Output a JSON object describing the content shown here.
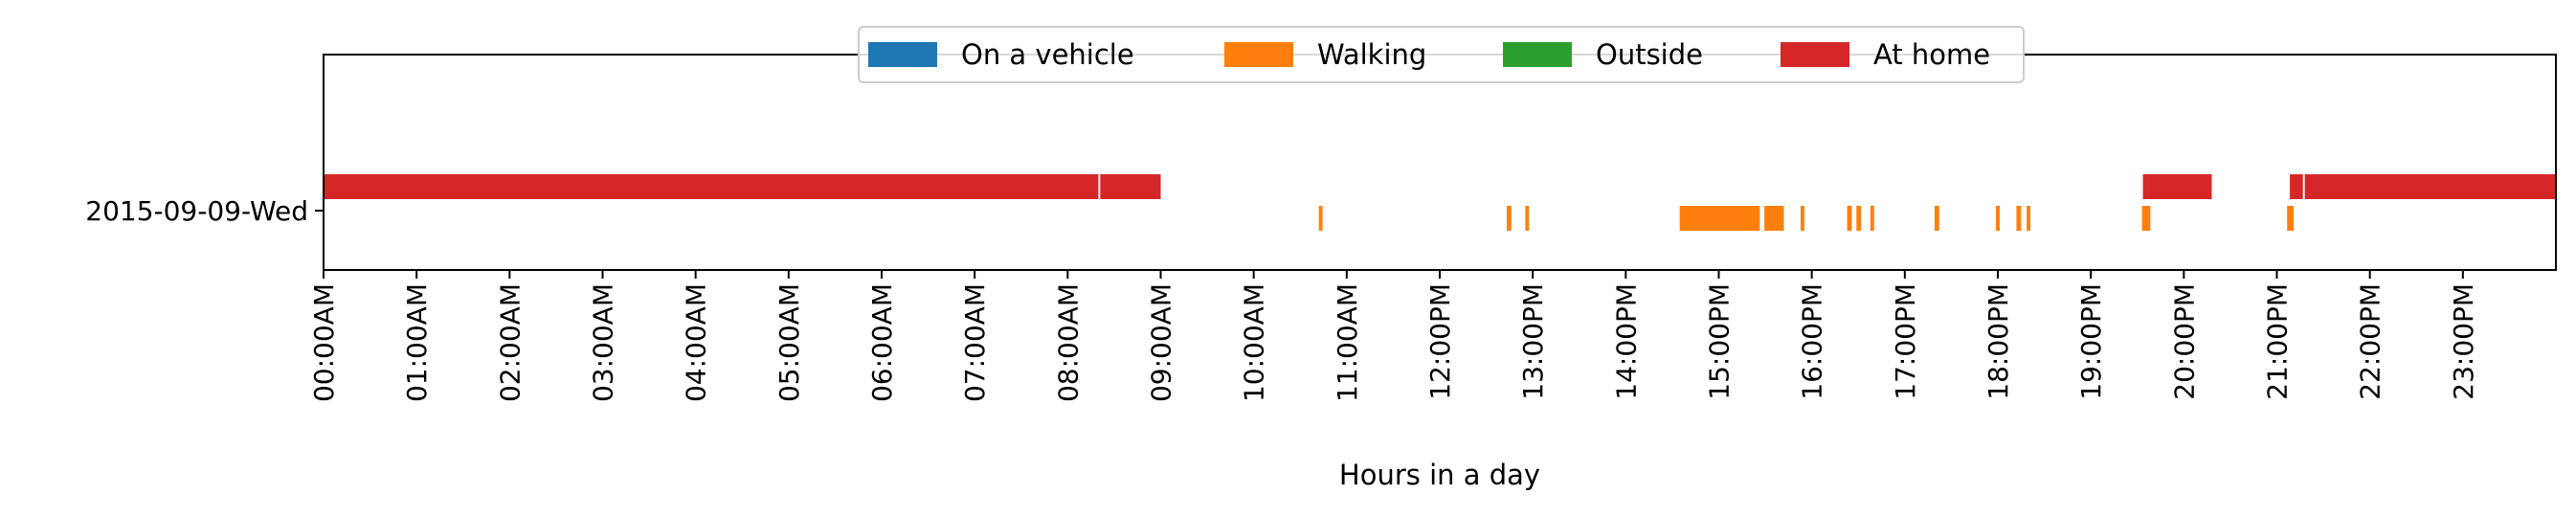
{
  "chart_data": {
    "type": "timeline",
    "xlabel": "Hours in a day",
    "ylabel": "",
    "xlim": [
      0,
      24
    ],
    "x_ticks": [
      "00:00AM",
      "01:00AM",
      "02:00AM",
      "03:00AM",
      "04:00AM",
      "05:00AM",
      "06:00AM",
      "07:00AM",
      "08:00AM",
      "09:00AM",
      "10:00AM",
      "11:00AM",
      "12:00PM",
      "13:00PM",
      "14:00PM",
      "15:00PM",
      "16:00PM",
      "17:00PM",
      "18:00PM",
      "19:00PM",
      "20:00PM",
      "21:00PM",
      "22:00PM",
      "23:00PM"
    ],
    "categories": [
      "2015-09-09-Wed"
    ],
    "legend": {
      "position": "top-center"
    },
    "grid": false,
    "series": [
      {
        "name": "On a vehicle",
        "color": "#1f77b4",
        "lane": "top",
        "intervals": []
      },
      {
        "name": "Walking",
        "color": "#ff7f0e",
        "lane": "bottom",
        "intervals": [
          [
            10.7,
            10.74
          ],
          [
            12.72,
            12.77
          ],
          [
            12.92,
            12.96
          ],
          [
            14.58,
            15.44
          ],
          [
            15.49,
            15.7
          ],
          [
            15.88,
            15.92
          ],
          [
            16.38,
            16.43
          ],
          [
            16.48,
            16.53
          ],
          [
            16.63,
            16.67
          ],
          [
            17.32,
            17.37
          ],
          [
            17.98,
            18.02
          ],
          [
            18.2,
            18.25
          ],
          [
            18.31,
            18.35
          ],
          [
            19.55,
            19.64
          ],
          [
            21.11,
            21.18
          ]
        ]
      },
      {
        "name": "Outside",
        "color": "#2ca02c",
        "lane": "top",
        "intervals": []
      },
      {
        "name": "At home",
        "color": "#d62728",
        "lane": "top",
        "intervals": [
          [
            0.0,
            8.33
          ],
          [
            8.35,
            9.0
          ],
          [
            19.56,
            20.3
          ],
          [
            21.14,
            21.28
          ],
          [
            21.3,
            23.99
          ]
        ]
      }
    ]
  }
}
